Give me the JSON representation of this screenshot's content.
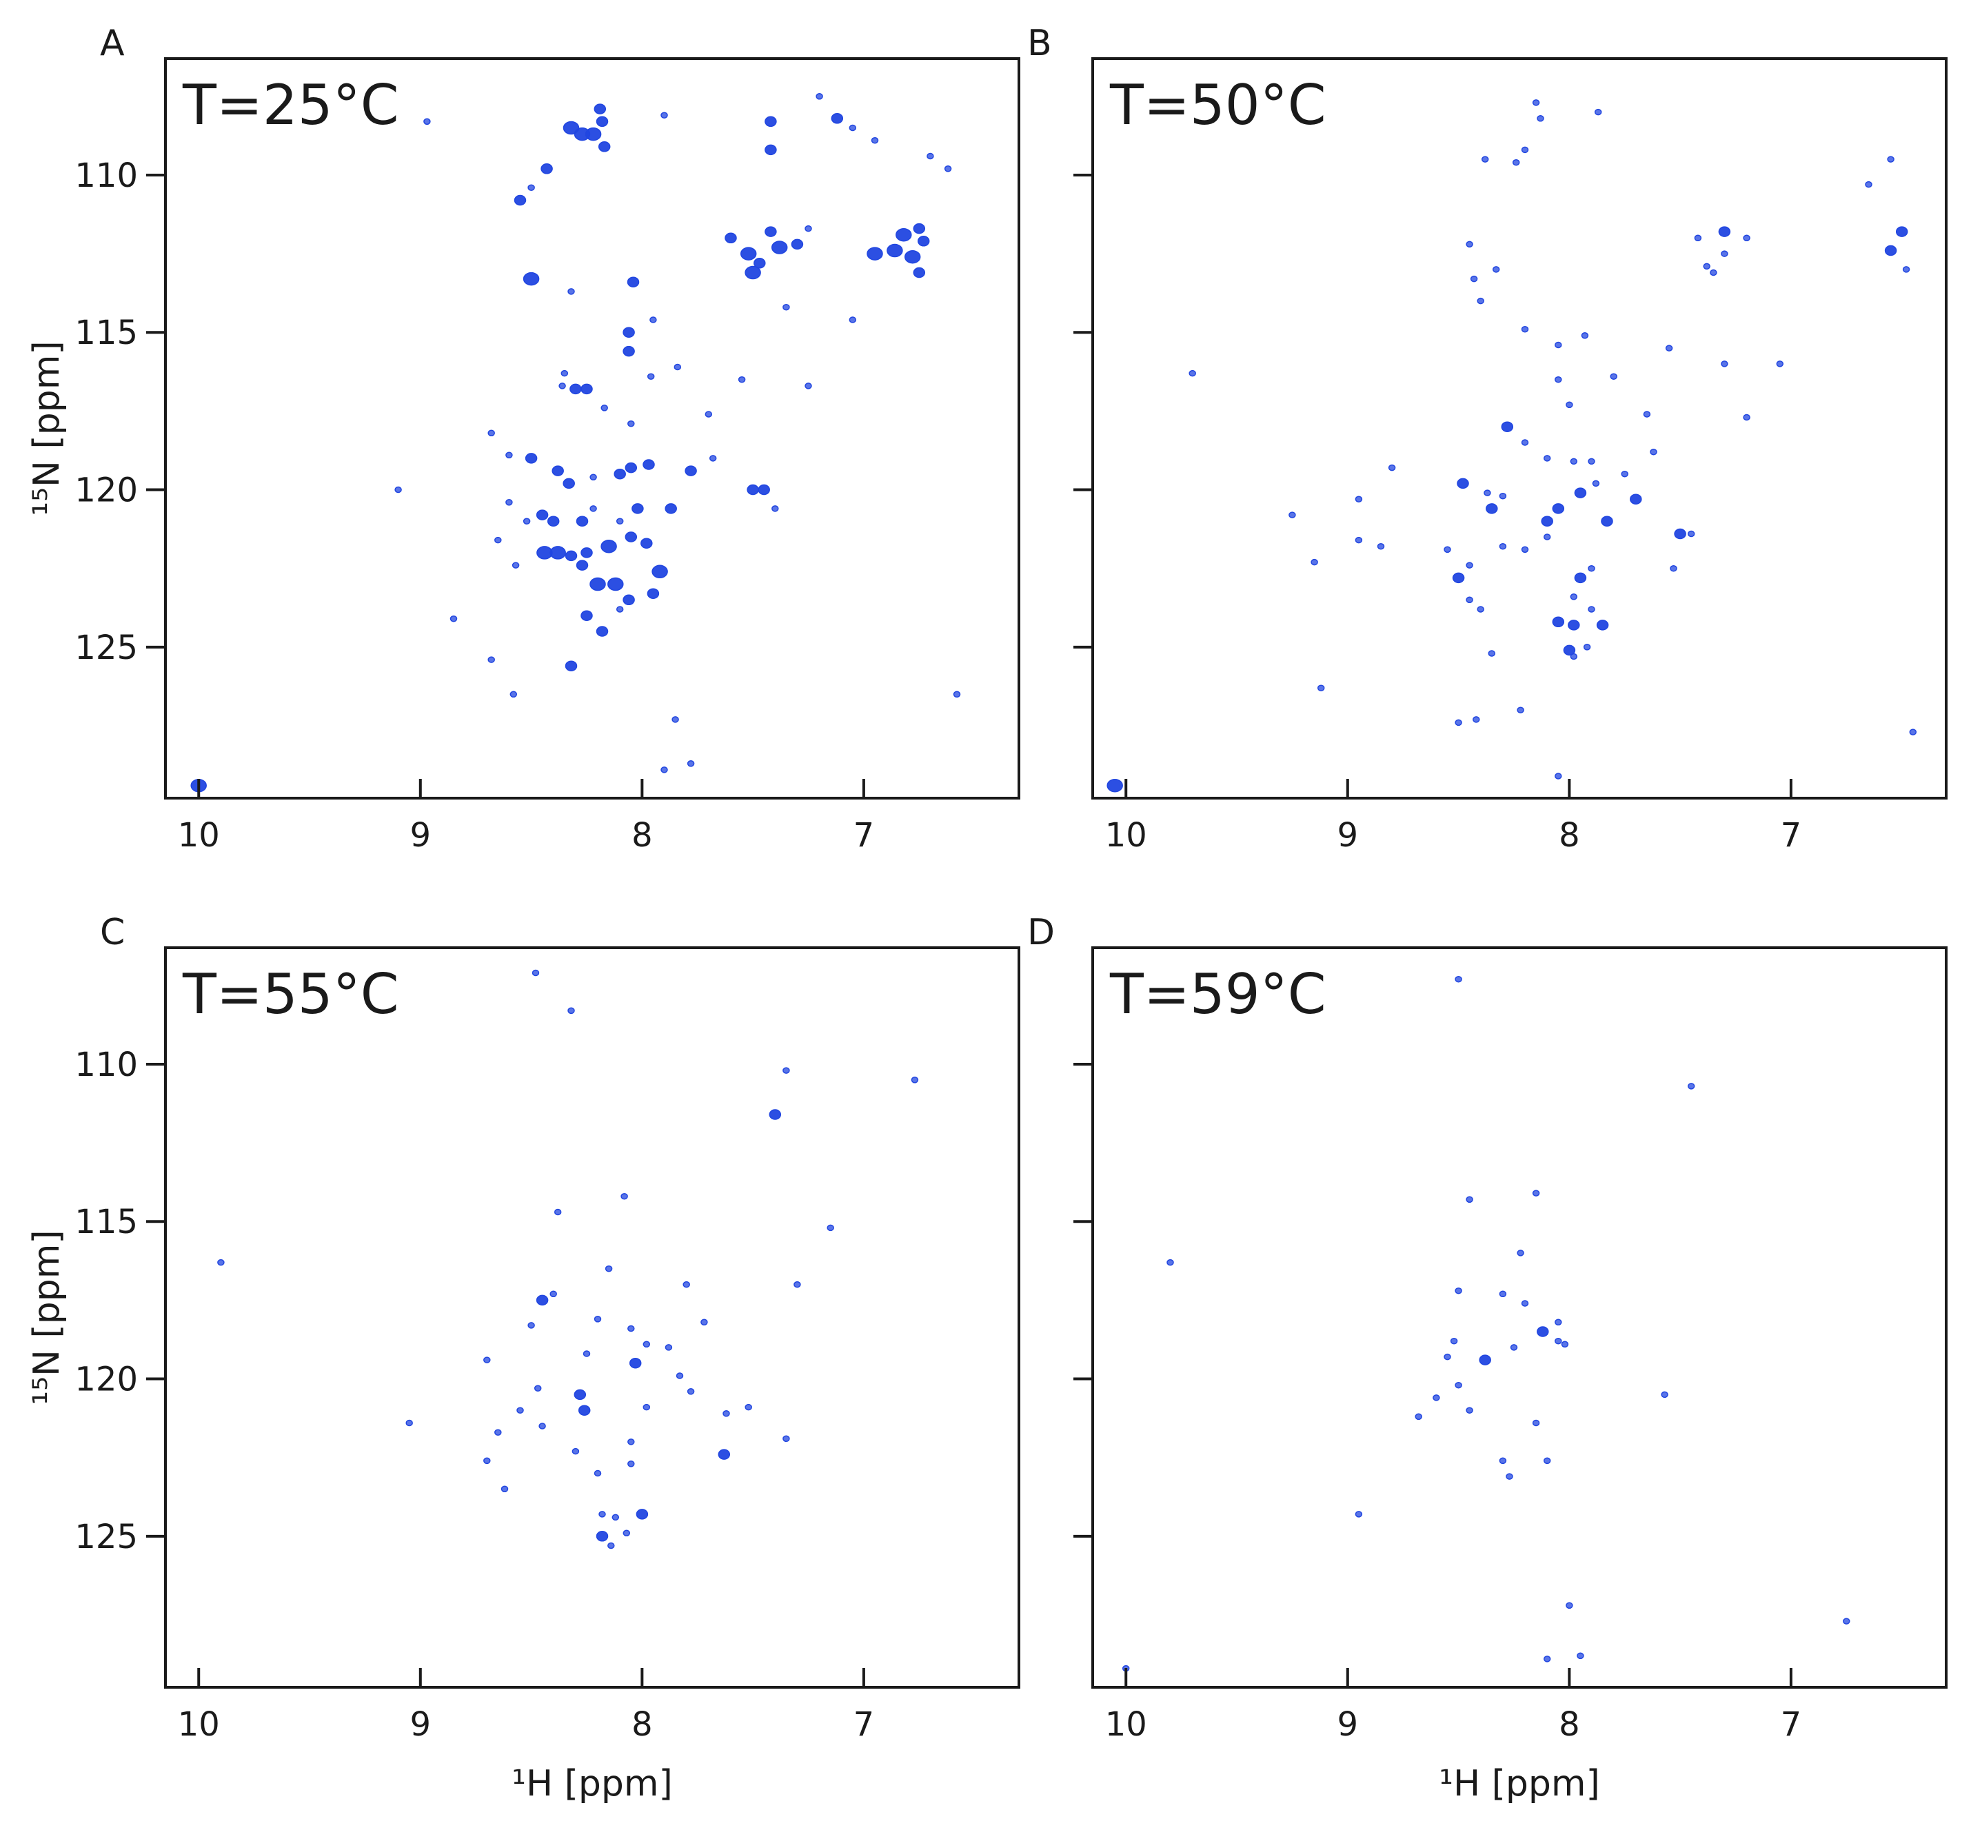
{
  "figure": {
    "xlabel": "¹H [ppm]",
    "ylabel": "¹⁵N [ppm]",
    "peak_color": "#2146e0",
    "axis_color": "#1a1a1a"
  },
  "chart_data": [
    {
      "type": "scatter",
      "panel": "A",
      "title": "T=25°C",
      "xlabel": "",
      "ylabel": "¹⁵N [ppm]",
      "xlim": [
        10.15,
        6.3
      ],
      "ylim": [
        106.3,
        129.8
      ],
      "x_ticks": [
        10,
        9,
        8,
        7
      ],
      "y_ticks": [
        110,
        115,
        120,
        125
      ],
      "x_inverted": true,
      "y_inverted": true,
      "points": [
        [
          10.0,
          129.4,
          3
        ],
        [
          8.97,
          108.3,
          1
        ],
        [
          8.55,
          110.8,
          2
        ],
        [
          8.5,
          110.4,
          1
        ],
        [
          8.43,
          109.8,
          2
        ],
        [
          8.32,
          108.5,
          3
        ],
        [
          8.27,
          108.7,
          3
        ],
        [
          8.22,
          108.7,
          3
        ],
        [
          8.19,
          107.9,
          2
        ],
        [
          8.18,
          108.3,
          2
        ],
        [
          8.17,
          109.1,
          2
        ],
        [
          7.9,
          108.1,
          1
        ],
        [
          7.42,
          108.3,
          2
        ],
        [
          7.42,
          109.2,
          2
        ],
        [
          7.2,
          107.5,
          1
        ],
        [
          7.12,
          108.2,
          2
        ],
        [
          7.05,
          108.5,
          1
        ],
        [
          6.95,
          108.9,
          1
        ],
        [
          6.7,
          109.4,
          1
        ],
        [
          6.62,
          109.8,
          1
        ],
        [
          7.6,
          112.0,
          2
        ],
        [
          7.52,
          112.5,
          3
        ],
        [
          7.5,
          113.1,
          3
        ],
        [
          7.47,
          112.8,
          2
        ],
        [
          7.42,
          111.8,
          2
        ],
        [
          7.38,
          112.3,
          3
        ],
        [
          7.3,
          112.2,
          2
        ],
        [
          7.25,
          111.7,
          1
        ],
        [
          6.95,
          112.5,
          3
        ],
        [
          6.86,
          112.4,
          3
        ],
        [
          6.82,
          111.9,
          3
        ],
        [
          6.78,
          112.6,
          3
        ],
        [
          6.75,
          111.7,
          2
        ],
        [
          6.73,
          112.1,
          2
        ],
        [
          6.75,
          113.1,
          2
        ],
        [
          8.5,
          113.3,
          3
        ],
        [
          8.32,
          113.7,
          1
        ],
        [
          8.04,
          113.4,
          2
        ],
        [
          8.06,
          115.0,
          2
        ],
        [
          8.06,
          115.6,
          2
        ],
        [
          7.95,
          114.6,
          1
        ],
        [
          7.96,
          116.4,
          1
        ],
        [
          7.84,
          116.1,
          1
        ],
        [
          8.35,
          116.3,
          1
        ],
        [
          8.36,
          116.7,
          1
        ],
        [
          8.3,
          116.8,
          2
        ],
        [
          8.25,
          116.8,
          2
        ],
        [
          8.17,
          117.4,
          1
        ],
        [
          8.05,
          117.9,
          1
        ],
        [
          7.7,
          117.6,
          1
        ],
        [
          8.68,
          118.2,
          1
        ],
        [
          8.6,
          118.9,
          1
        ],
        [
          8.5,
          119.0,
          2
        ],
        [
          8.38,
          119.4,
          2
        ],
        [
          8.33,
          119.8,
          2
        ],
        [
          8.22,
          119.6,
          1
        ],
        [
          8.1,
          119.5,
          2
        ],
        [
          8.05,
          119.3,
          2
        ],
        [
          7.97,
          119.2,
          2
        ],
        [
          7.78,
          119.4,
          2
        ],
        [
          7.68,
          119.0,
          1
        ],
        [
          9.1,
          120.0,
          1
        ],
        [
          8.6,
          120.4,
          1
        ],
        [
          8.52,
          121.0,
          1
        ],
        [
          8.45,
          120.8,
          2
        ],
        [
          8.4,
          121.0,
          2
        ],
        [
          8.27,
          121.0,
          2
        ],
        [
          8.22,
          120.6,
          1
        ],
        [
          8.1,
          121.0,
          1
        ],
        [
          8.02,
          120.6,
          2
        ],
        [
          7.87,
          120.6,
          2
        ],
        [
          7.5,
          120.0,
          2
        ],
        [
          7.45,
          120.0,
          2
        ],
        [
          7.4,
          120.6,
          1
        ],
        [
          8.65,
          121.6,
          1
        ],
        [
          8.44,
          122.0,
          3
        ],
        [
          8.38,
          122.0,
          3
        ],
        [
          8.32,
          122.1,
          2
        ],
        [
          8.27,
          122.4,
          2
        ],
        [
          8.25,
          122.0,
          2
        ],
        [
          8.15,
          121.8,
          3
        ],
        [
          8.05,
          121.5,
          2
        ],
        [
          7.98,
          121.7,
          2
        ],
        [
          8.57,
          122.4,
          1
        ],
        [
          8.2,
          123.0,
          3
        ],
        [
          8.12,
          123.0,
          3
        ],
        [
          8.06,
          123.5,
          2
        ],
        [
          7.95,
          123.3,
          2
        ],
        [
          7.92,
          122.6,
          3
        ],
        [
          8.25,
          124.0,
          2
        ],
        [
          8.18,
          124.5,
          2
        ],
        [
          8.1,
          123.8,
          1
        ],
        [
          8.85,
          124.1,
          1
        ],
        [
          8.68,
          125.4,
          1
        ],
        [
          8.32,
          125.6,
          2
        ],
        [
          8.58,
          126.5,
          1
        ],
        [
          7.85,
          127.3,
          1
        ],
        [
          7.78,
          128.7,
          1
        ],
        [
          7.9,
          128.9,
          1
        ],
        [
          6.58,
          126.5,
          1
        ],
        [
          7.55,
          116.5,
          1
        ],
        [
          7.35,
          114.2,
          1
        ],
        [
          7.25,
          116.7,
          1
        ],
        [
          7.05,
          114.6,
          1
        ]
      ]
    },
    {
      "type": "scatter",
      "panel": "B",
      "title": "T=50°C",
      "xlabel": "",
      "ylabel": "",
      "xlim": [
        10.15,
        6.3
      ],
      "ylim": [
        106.3,
        129.8
      ],
      "x_ticks": [
        10,
        9,
        8,
        7
      ],
      "y_ticks": [
        110,
        115,
        120,
        125
      ],
      "x_inverted": true,
      "y_inverted": true,
      "points": [
        [
          10.05,
          129.4,
          3
        ],
        [
          8.15,
          107.7,
          1
        ],
        [
          8.13,
          108.2,
          1
        ],
        [
          7.87,
          108.0,
          1
        ],
        [
          8.2,
          109.2,
          1
        ],
        [
          8.38,
          109.5,
          1
        ],
        [
          8.24,
          109.6,
          1
        ],
        [
          6.55,
          109.5,
          1
        ],
        [
          6.65,
          110.3,
          1
        ],
        [
          7.3,
          111.8,
          2
        ],
        [
          7.2,
          112.0,
          1
        ],
        [
          7.42,
          112.0,
          1
        ],
        [
          7.38,
          112.9,
          1
        ],
        [
          7.3,
          112.5,
          1
        ],
        [
          7.35,
          113.1,
          1
        ],
        [
          6.5,
          111.8,
          2
        ],
        [
          6.55,
          112.4,
          2
        ],
        [
          6.48,
          113.0,
          1
        ],
        [
          8.45,
          112.2,
          1
        ],
        [
          8.43,
          113.3,
          1
        ],
        [
          8.33,
          113.0,
          1
        ],
        [
          8.4,
          114.0,
          1
        ],
        [
          8.2,
          114.9,
          1
        ],
        [
          8.05,
          115.4,
          1
        ],
        [
          7.93,
          115.1,
          1
        ],
        [
          7.55,
          115.5,
          1
        ],
        [
          7.3,
          116.0,
          1
        ],
        [
          7.05,
          116.0,
          1
        ],
        [
          9.7,
          116.3,
          1
        ],
        [
          8.05,
          116.5,
          1
        ],
        [
          7.8,
          116.4,
          1
        ],
        [
          8.0,
          117.3,
          1
        ],
        [
          7.65,
          117.6,
          1
        ],
        [
          7.2,
          117.7,
          1
        ],
        [
          8.28,
          118.0,
          2
        ],
        [
          8.2,
          118.5,
          1
        ],
        [
          8.1,
          119.0,
          1
        ],
        [
          7.62,
          118.8,
          1
        ],
        [
          8.8,
          119.3,
          1
        ],
        [
          8.48,
          119.8,
          2
        ],
        [
          8.37,
          120.1,
          1
        ],
        [
          8.3,
          120.2,
          1
        ],
        [
          7.98,
          119.1,
          1
        ],
        [
          7.9,
          119.1,
          1
        ],
        [
          7.88,
          119.8,
          1
        ],
        [
          7.75,
          119.5,
          1
        ],
        [
          9.25,
          120.8,
          1
        ],
        [
          8.95,
          120.3,
          1
        ],
        [
          8.35,
          120.6,
          2
        ],
        [
          8.1,
          121.0,
          2
        ],
        [
          8.05,
          120.6,
          2
        ],
        [
          7.95,
          120.1,
          2
        ],
        [
          7.83,
          121.0,
          2
        ],
        [
          7.7,
          120.3,
          2
        ],
        [
          9.15,
          122.3,
          1
        ],
        [
          8.95,
          121.6,
          1
        ],
        [
          8.85,
          121.8,
          1
        ],
        [
          8.55,
          121.9,
          1
        ],
        [
          8.45,
          122.4,
          1
        ],
        [
          8.3,
          121.8,
          1
        ],
        [
          8.2,
          121.9,
          1
        ],
        [
          8.1,
          121.5,
          1
        ],
        [
          7.9,
          122.5,
          1
        ],
        [
          7.5,
          121.4,
          2
        ],
        [
          7.45,
          121.4,
          1
        ],
        [
          7.53,
          122.5,
          1
        ],
        [
          8.5,
          122.8,
          2
        ],
        [
          8.45,
          123.5,
          1
        ],
        [
          8.4,
          123.8,
          1
        ],
        [
          7.95,
          122.8,
          2
        ],
        [
          7.98,
          123.4,
          1
        ],
        [
          8.05,
          124.2,
          2
        ],
        [
          7.98,
          124.3,
          2
        ],
        [
          7.85,
          124.3,
          2
        ],
        [
          7.9,
          123.8,
          1
        ],
        [
          8.0,
          125.1,
          2
        ],
        [
          7.98,
          125.3,
          1
        ],
        [
          7.92,
          125.0,
          1
        ],
        [
          8.35,
          125.2,
          1
        ],
        [
          9.12,
          126.3,
          1
        ],
        [
          8.5,
          127.4,
          1
        ],
        [
          8.42,
          127.3,
          1
        ],
        [
          8.22,
          127.0,
          1
        ],
        [
          8.05,
          129.1,
          1
        ],
        [
          6.45,
          127.7,
          1
        ]
      ]
    },
    {
      "type": "scatter",
      "panel": "C",
      "title": "T=55°C",
      "xlabel": "",
      "ylabel": "¹⁵N [ppm]",
      "xlim": [
        10.15,
        6.3
      ],
      "ylim": [
        106.3,
        129.8
      ],
      "x_ticks": [
        10,
        9,
        8,
        7
      ],
      "y_ticks": [
        110,
        115,
        120,
        125
      ],
      "x_inverted": true,
      "y_inverted": true,
      "points": [
        [
          8.48,
          107.1,
          1
        ],
        [
          8.32,
          108.3,
          1
        ],
        [
          7.35,
          110.2,
          1
        ],
        [
          7.4,
          111.6,
          2
        ],
        [
          6.77,
          110.5,
          1
        ],
        [
          8.38,
          114.7,
          1
        ],
        [
          8.08,
          114.2,
          1
        ],
        [
          7.15,
          115.2,
          1
        ],
        [
          9.9,
          116.3,
          1
        ],
        [
          8.15,
          116.5,
          1
        ],
        [
          7.3,
          117.0,
          1
        ],
        [
          7.8,
          117.0,
          1
        ],
        [
          8.45,
          117.5,
          2
        ],
        [
          8.4,
          117.3,
          1
        ],
        [
          8.5,
          118.3,
          1
        ],
        [
          8.2,
          118.1,
          1
        ],
        [
          8.05,
          118.4,
          1
        ],
        [
          7.72,
          118.2,
          1
        ],
        [
          8.7,
          119.4,
          1
        ],
        [
          8.25,
          119.2,
          1
        ],
        [
          7.98,
          118.9,
          1
        ],
        [
          7.88,
          119.0,
          1
        ],
        [
          8.03,
          119.5,
          2
        ],
        [
          8.47,
          120.3,
          1
        ],
        [
          8.28,
          120.5,
          2
        ],
        [
          8.26,
          121.0,
          2
        ],
        [
          7.98,
          120.9,
          1
        ],
        [
          7.83,
          119.9,
          1
        ],
        [
          7.78,
          120.4,
          1
        ],
        [
          8.55,
          121.0,
          1
        ],
        [
          8.45,
          121.5,
          1
        ],
        [
          8.3,
          122.3,
          1
        ],
        [
          8.65,
          121.7,
          1
        ],
        [
          8.7,
          122.6,
          1
        ],
        [
          8.62,
          123.5,
          1
        ],
        [
          8.2,
          123.0,
          1
        ],
        [
          8.05,
          122.0,
          1
        ],
        [
          8.05,
          122.7,
          1
        ],
        [
          7.62,
          121.1,
          1
        ],
        [
          7.52,
          120.9,
          1
        ],
        [
          7.63,
          122.4,
          2
        ],
        [
          7.35,
          121.9,
          1
        ],
        [
          9.05,
          121.4,
          1
        ],
        [
          8.18,
          124.3,
          1
        ],
        [
          8.12,
          124.4,
          1
        ],
        [
          8.0,
          124.3,
          2
        ],
        [
          8.18,
          125.0,
          2
        ],
        [
          8.07,
          124.9,
          1
        ],
        [
          8.14,
          125.3,
          1
        ]
      ]
    },
    {
      "type": "scatter",
      "panel": "D",
      "title": "T=59°C",
      "xlabel": "¹H [ppm]",
      "ylabel": "",
      "xlim": [
        10.15,
        6.3
      ],
      "ylim": [
        106.3,
        129.8
      ],
      "x_ticks": [
        10,
        9,
        8,
        7
      ],
      "y_ticks": [
        110,
        115,
        120,
        125
      ],
      "x_inverted": true,
      "y_inverted": true,
      "points": [
        [
          9.8,
          116.3,
          1
        ],
        [
          8.5,
          107.3,
          1
        ],
        [
          7.45,
          110.7,
          1
        ],
        [
          8.45,
          114.3,
          1
        ],
        [
          8.15,
          114.1,
          1
        ],
        [
          8.22,
          116.0,
          1
        ],
        [
          8.5,
          117.2,
          1
        ],
        [
          8.3,
          117.3,
          1
        ],
        [
          8.2,
          117.6,
          1
        ],
        [
          8.12,
          118.5,
          2
        ],
        [
          8.05,
          118.2,
          1
        ],
        [
          8.02,
          118.9,
          1
        ],
        [
          8.52,
          118.8,
          1
        ],
        [
          8.55,
          119.3,
          1
        ],
        [
          8.38,
          119.4,
          2
        ],
        [
          8.25,
          119.0,
          1
        ],
        [
          8.5,
          120.2,
          1
        ],
        [
          8.6,
          120.6,
          1
        ],
        [
          8.68,
          121.2,
          1
        ],
        [
          8.45,
          121.0,
          1
        ],
        [
          8.15,
          121.4,
          1
        ],
        [
          8.3,
          122.6,
          1
        ],
        [
          8.27,
          123.1,
          1
        ],
        [
          8.1,
          122.6,
          1
        ],
        [
          7.57,
          120.5,
          1
        ],
        [
          8.05,
          118.8,
          1
        ],
        [
          8.0,
          127.2,
          1
        ],
        [
          8.1,
          128.9,
          1
        ],
        [
          7.95,
          128.8,
          1
        ],
        [
          6.75,
          127.7,
          1
        ],
        [
          10.0,
          129.2,
          1
        ],
        [
          8.95,
          124.3,
          1
        ]
      ]
    }
  ]
}
